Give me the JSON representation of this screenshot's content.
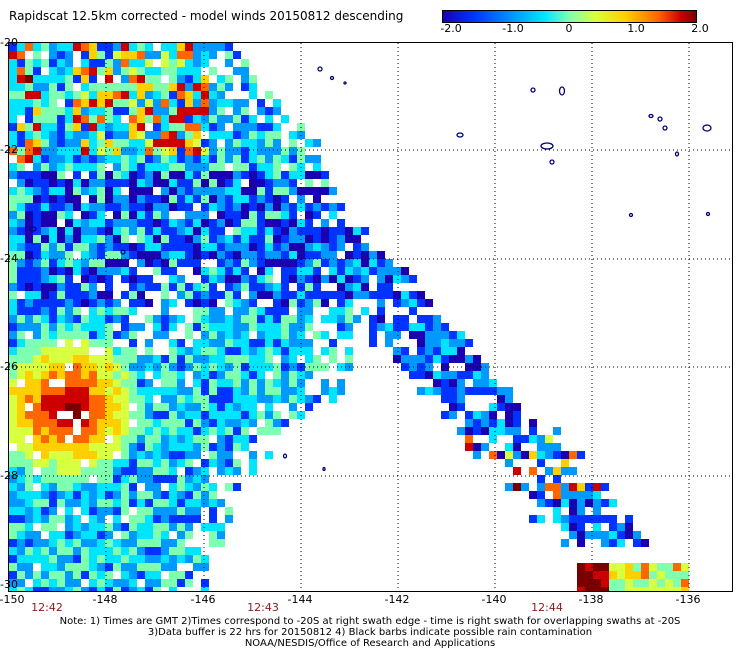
{
  "title": "Rapidscat 12.5km corrected - model winds 20150812 descending",
  "colorbar": {
    "labels": [
      "-2.0",
      "-1.0",
      "0",
      "1.0",
      "2.0"
    ],
    "colors": [
      "#1a00b0",
      "#0033ff",
      "#0099ff",
      "#00e5ff",
      "#7fffb0",
      "#d8ff40",
      "#ffd000",
      "#ff6600",
      "#cc0000",
      "#7a0000"
    ]
  },
  "axes": {
    "y_labels": [
      "-20",
      "-22",
      "-24",
      "-26",
      "-28",
      "-30"
    ],
    "x_labels": [
      "-150",
      "-148",
      "-146",
      "-144",
      "-142",
      "-140",
      "-138",
      "-136"
    ]
  },
  "times": [
    "12:42",
    "12:43",
    "12:44"
  ],
  "notes": [
    "Note: 1) Times are GMT 2)Times correspond to -20S at right swath edge - time is right swath for overlapping swaths at -20S",
    "3)Data buffer is 22 hrs for 20150812 4) Black barbs indicate possible rain contamination",
    "NOAA/NESDIS/Office of Research and Applications"
  ]
}
